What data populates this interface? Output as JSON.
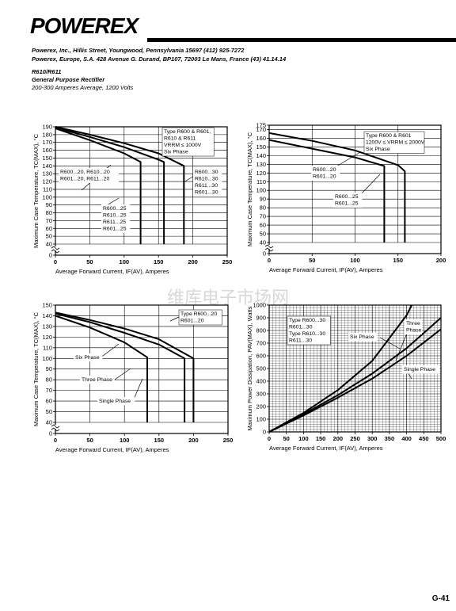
{
  "header": {
    "logo": "POWEREX",
    "address_us": "Powerex, Inc., Hillis Street, Youngwood, Pennsylvania 15697 (412) 925-7272",
    "address_eu": "Powerex, Europe, S.A. 428 Avenue G. Durand, BP107, 72003 Le Mans, France (43) 41.14.14",
    "part": "R610/R611",
    "product": "General Purpose Rectifier",
    "rating": "200-300 Amperes Average, 1200 Volts"
  },
  "watermark": "维库电子市场网",
  "footer": "G-41",
  "chart_data": [
    {
      "type": "line",
      "x_label": "Average Forward Current, IF(AV), Amperes",
      "y_label": "Maximum Case Temperature, TC(MAX), °C",
      "xlim": [
        0,
        250
      ],
      "xticks": [
        0,
        50,
        100,
        150,
        200,
        250
      ],
      "ylim": [
        0,
        190
      ],
      "yticks": [
        0,
        40,
        50,
        60,
        70,
        80,
        90,
        100,
        110,
        120,
        130,
        140,
        150,
        160,
        170,
        180,
        190
      ],
      "y_break": [
        0,
        40
      ],
      "grid": true,
      "series": [
        {
          "color": "#000000",
          "x": [
            0,
            50,
            100,
            124,
            124
          ],
          "values": [
            188,
            173,
            156,
            145,
            40
          ]
        },
        {
          "color": "#000000",
          "x": [
            0,
            50,
            100,
            150,
            158,
            158
          ],
          "values": [
            189,
            177,
            164,
            148,
            145,
            40
          ]
        },
        {
          "color": "#000000",
          "x": [
            0,
            50,
            100,
            150,
            187,
            187
          ],
          "values": [
            190,
            180,
            169,
            156,
            140,
            40
          ]
        }
      ],
      "annotations": [
        {
          "lines": [
            "Type R600 & R601,",
            "R610 & R611",
            "VRRM ≤ 1000V",
            "Six Phase"
          ]
        },
        {
          "lines": [
            "R600...20, R610...20",
            "R601...20, R611...20"
          ]
        },
        {
          "lines": [
            "R600...30",
            "R610...30",
            "R611...30",
            "R601...30"
          ]
        },
        {
          "lines": [
            "R600...25",
            "R610...25",
            "R611...25",
            "R601...25"
          ]
        }
      ]
    },
    {
      "type": "line",
      "x_label": "Average Forward Current, IF(AV), Amperes",
      "y_label": "Maximum Case Temperature, TC(MAX), °C",
      "xlim": [
        0,
        200
      ],
      "xticks": [
        0,
        50,
        100,
        150,
        200
      ],
      "ylim": [
        0,
        175
      ],
      "yticks": [
        0,
        40,
        50,
        60,
        70,
        80,
        90,
        100,
        110,
        120,
        130,
        140,
        150,
        160,
        170,
        175
      ],
      "y_break": [
        0,
        40
      ],
      "grid": true,
      "series": [
        {
          "color": "#000000",
          "x": [
            0,
            50,
            100,
            134,
            134
          ],
          "values": [
            158,
            148,
            138,
            128,
            40
          ]
        },
        {
          "color": "#000000",
          "x": [
            0,
            50,
            100,
            150,
            158,
            158
          ],
          "values": [
            166,
            157,
            146,
            129,
            122,
            40
          ]
        }
      ],
      "annotations": [
        {
          "lines": [
            "Type R600 & R601",
            "1200V ≤ VRRM ≤ 2000V",
            "Six Phase"
          ]
        },
        {
          "lines": [
            "R600...20",
            "R601...20"
          ]
        },
        {
          "lines": [
            "R600...25",
            "R601...25"
          ]
        }
      ]
    },
    {
      "type": "line",
      "x_label": "Average Forward Current, IF(AV), Amperes",
      "y_label": "Maximum Case Temperature, TC(MAX), °C",
      "xlim": [
        0,
        250
      ],
      "xticks": [
        0,
        50,
        100,
        150,
        200,
        250
      ],
      "ylim": [
        0,
        150
      ],
      "yticks": [
        0,
        40,
        50,
        60,
        70,
        80,
        90,
        100,
        110,
        120,
        130,
        140,
        150
      ],
      "y_break": [
        0,
        40
      ],
      "grid": true,
      "series": [
        {
          "color": "#000000",
          "x": [
            0,
            50,
            100,
            133,
            133
          ],
          "values": [
            140,
            129,
            115,
            101,
            40
          ]
        },
        {
          "color": "#000000",
          "x": [
            0,
            50,
            100,
            150,
            187,
            187
          ],
          "values": [
            142,
            134,
            124,
            113,
            100,
            40
          ]
        },
        {
          "color": "#000000",
          "x": [
            0,
            50,
            100,
            150,
            200,
            200
          ],
          "values": [
            143,
            136,
            128,
            118,
            100,
            40
          ]
        }
      ],
      "annotations": [
        {
          "lines": [
            "Type R600...20",
            "R601...20"
          ]
        },
        {
          "lines": [
            "Six Phase"
          ]
        },
        {
          "lines": [
            "Three Phase"
          ]
        },
        {
          "lines": [
            "Single Phase"
          ]
        }
      ]
    },
    {
      "type": "line",
      "x_label": "Average Forward Current, IF(AV), Amperes",
      "y_label": "Maximum Power Dissipation, PAV(MAX), Watts",
      "xlim": [
        0,
        500
      ],
      "xticks": [
        0,
        50,
        100,
        150,
        200,
        250,
        300,
        350,
        400,
        450,
        500
      ],
      "ylim": [
        0,
        1000
      ],
      "yticks": [
        0,
        100,
        200,
        300,
        400,
        500,
        600,
        700,
        800,
        900,
        1000
      ],
      "grid": "fine",
      "series": [
        {
          "color": "#000000",
          "x": [
            0,
            100,
            200,
            300,
            400,
            415
          ],
          "values": [
            0,
            150,
            330,
            560,
            920,
            1000
          ]
        },
        {
          "color": "#000000",
          "x": [
            0,
            100,
            200,
            300,
            400,
            500
          ],
          "values": [
            0,
            140,
            290,
            460,
            660,
            900
          ]
        },
        {
          "color": "#000000",
          "x": [
            0,
            100,
            200,
            300,
            400,
            500
          ],
          "values": [
            0,
            130,
            270,
            420,
            600,
            810
          ]
        }
      ],
      "annotations": [
        {
          "lines": [
            "Type R600...30",
            "R601...30",
            "Type R610...30",
            "R611...30"
          ]
        },
        {
          "lines": [
            "Six Phase"
          ]
        },
        {
          "lines": [
            "Three",
            "Phase"
          ]
        },
        {
          "lines": [
            "Single Phase"
          ]
        }
      ]
    }
  ]
}
